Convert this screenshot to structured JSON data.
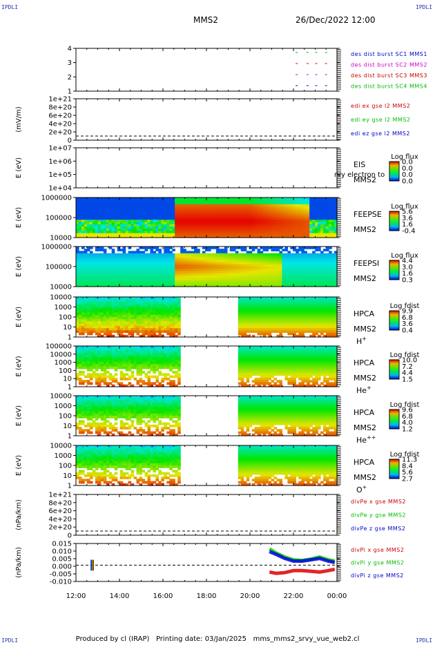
{
  "header": {
    "spacecraft": "MMS2",
    "datetime": "26/Dec/2022 12:00"
  },
  "corner_label": "IPDLI",
  "footer": {
    "producer": "Produced by cl (IRAP)",
    "printing": "Printing date: 03/Jan/2025",
    "file": "mms_mms2_srvy_vue_web2.cl"
  },
  "chart_data": {
    "type": "heatmap",
    "title": "MMS2  26/Dec/2022 12:00",
    "x_axis": {
      "range_hours": [
        12,
        24
      ],
      "tick_labels": [
        "12:00",
        "14:00",
        "16:00",
        "18:00",
        "20:00",
        "22:00",
        "00:00"
      ],
      "tick_values": [
        12,
        14,
        16,
        18,
        20,
        22,
        24
      ]
    },
    "panels": [
      {
        "id": "burst",
        "type": "line",
        "ylabel": "",
        "y_ticks": [
          "4",
          "3",
          "2",
          "1"
        ],
        "legend": [
          {
            "name": "des dist burst SC1 MMS1",
            "color": "#0000cc"
          },
          {
            "name": "des dist burst SC2 MMS2",
            "color": "#cc00cc"
          },
          {
            "name": "des dist burst SC3 MMS3",
            "color": "#cc0000"
          },
          {
            "name": "des dist burst SC4 MMS4",
            "color": "#00bb00"
          }
        ],
        "bursts_hours": [
          22.1,
          22.6,
          23.0,
          23.45
        ]
      },
      {
        "id": "edi",
        "type": "line",
        "ylabel": "(mV/m)",
        "y_ticks": [
          "1e+21",
          "8e+20",
          "6e+20",
          "4e+20",
          "2e+20",
          "0"
        ],
        "legend": [
          {
            "name": "edi ex gse l2 MMS2",
            "color": "#cc0000"
          },
          {
            "name": "edi ey gse l2 MMS2",
            "color": "#00bb00"
          },
          {
            "name": "edi ez gse l2 MMS2",
            "color": "#0000cc"
          }
        ]
      },
      {
        "id": "eis",
        "type": "heatmap",
        "ylabel": "E (eV)",
        "y_ticks": [
          "1e+07",
          "1e+06",
          "1e+05",
          "1e+04"
        ],
        "instrument": "EIS",
        "spacecraft": "MMS2",
        "overlay_text": "rvy electron to",
        "colorbar": {
          "title": "Log flux",
          "ticks": [
            "0.0",
            "0.0",
            "0.0",
            "0.0"
          ]
        }
      },
      {
        "id": "feepse",
        "type": "heatmap",
        "ylabel": "E (eV)",
        "y_ticks": [
          "1000000",
          "100000",
          "10000"
        ],
        "instrument": "FEEPSE",
        "spacecraft": "MMS2",
        "colorbar": {
          "title": "Log flux",
          "ticks": [
            "5.6",
            "3.6",
            "1.6",
            "-0.4"
          ]
        }
      },
      {
        "id": "feepsi",
        "type": "heatmap",
        "ylabel": "E (eV)",
        "y_ticks": [
          "1000000",
          "100000",
          "10000"
        ],
        "instrument": "FEEPSI",
        "spacecraft": "MMS2",
        "colorbar": {
          "title": "Log flux",
          "ticks": [
            "4.4",
            "3.0",
            "1.6",
            "0.3"
          ]
        }
      },
      {
        "id": "hpca_h",
        "type": "heatmap",
        "ylabel": "E (eV)",
        "y_ticks": [
          "10000",
          "1000",
          "100",
          "10",
          "1"
        ],
        "instrument": "HPCA",
        "spacecraft": "MMS2",
        "species": "H",
        "charge": "+",
        "gap_hours": [
          16.8,
          19.4
        ],
        "colorbar": {
          "title": "Log fdist",
          "ticks": [
            "9.9",
            "6.8",
            "3.6",
            "0.4"
          ]
        }
      },
      {
        "id": "hpca_he1",
        "type": "heatmap",
        "ylabel": "E (eV)",
        "y_ticks": [
          "100000",
          "10000",
          "1000",
          "100",
          "10",
          "1"
        ],
        "instrument": "HPCA",
        "spacecraft": "MMS2",
        "species": "He",
        "charge": "+",
        "gap_hours": [
          16.8,
          19.4
        ],
        "colorbar": {
          "title": "Log fdist",
          "ticks": [
            "10.0",
            "7.2",
            "4.4",
            "1.5"
          ]
        }
      },
      {
        "id": "hpca_he2",
        "type": "heatmap",
        "ylabel": "E (eV)",
        "y_ticks": [
          "10000",
          "1000",
          "100",
          "10",
          "1"
        ],
        "instrument": "HPCA",
        "spacecraft": "MMS2",
        "species": "He",
        "charge": "++",
        "gap_hours": [
          16.8,
          19.4
        ],
        "colorbar": {
          "title": "Log fdist",
          "ticks": [
            "9.6",
            "6.8",
            "4.0",
            "1.2"
          ]
        }
      },
      {
        "id": "hpca_o",
        "type": "heatmap",
        "ylabel": "E (eV)",
        "y_ticks": [
          "10000",
          "1000",
          "100",
          "10",
          "1"
        ],
        "instrument": "HPCA",
        "spacecraft": "MMS2",
        "species": "O",
        "charge": "+",
        "gap_hours": [
          16.8,
          19.4
        ],
        "colorbar": {
          "title": "Log fdist",
          "ticks": [
            "11.3",
            "8.4",
            "5.6",
            "2.7"
          ]
        }
      },
      {
        "id": "divpe",
        "type": "line",
        "ylabel": "(nPa/km)",
        "y_ticks": [
          "1e+21",
          "8e+20",
          "6e+20",
          "4e+20",
          "2e+20",
          "0"
        ],
        "legend": [
          {
            "name": "divPe x gse MMS2",
            "color": "#cc0000"
          },
          {
            "name": "divPe y gse MMS2",
            "color": "#00bb00"
          },
          {
            "name": "divPe z gse MMS2",
            "color": "#0000cc"
          }
        ]
      },
      {
        "id": "divpi",
        "type": "line",
        "ylabel": "(nPa/km)",
        "y_ticks": [
          "0.015",
          "0.010",
          "0.005",
          "0.000",
          "-0.005",
          "-0.010"
        ],
        "ylim": [
          -0.012,
          0.016
        ],
        "legend": [
          {
            "name": "divPi x gse MMS2",
            "color": "#cc0000"
          },
          {
            "name": "divPi y gse MMS2",
            "color": "#00bb00"
          },
          {
            "name": "divPi z gse MMS2",
            "color": "#0000cc"
          }
        ],
        "series": [
          {
            "name": "divPi x gse MMS2",
            "x": [
              20.9,
              21.2,
              21.6,
              22.0,
              22.4,
              22.8,
              23.2,
              23.6,
              23.9
            ],
            "values": [
              -0.005,
              -0.006,
              -0.0055,
              -0.004,
              -0.004,
              -0.0045,
              -0.005,
              -0.004,
              -0.003
            ]
          },
          {
            "name": "divPi y gse MMS2",
            "x": [
              20.9,
              21.2,
              21.6,
              22.0,
              22.4,
              22.8,
              23.2,
              23.6,
              23.9
            ],
            "values": [
              0.012,
              0.009,
              0.006,
              0.004,
              0.0035,
              0.0045,
              0.006,
              0.004,
              0.003
            ]
          },
          {
            "name": "divPi z gse MMS2",
            "x": [
              20.9,
              21.2,
              21.6,
              22.0,
              22.4,
              22.8,
              23.2,
              23.6,
              23.9
            ],
            "values": [
              0.01,
              0.008,
              0.005,
              0.003,
              0.003,
              0.004,
              0.005,
              0.003,
              0.002
            ]
          }
        ]
      }
    ]
  }
}
